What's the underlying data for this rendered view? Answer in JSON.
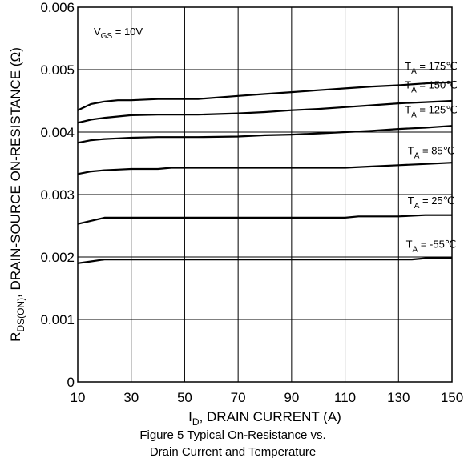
{
  "chart_data": {
    "type": "line",
    "x_axis": {
      "title_main": "I",
      "title_sub": "D",
      "title_rest": ", DRAIN CURRENT (A)",
      "range": [
        10,
        150
      ],
      "ticks": [
        10,
        30,
        50,
        70,
        90,
        110,
        130,
        150
      ],
      "tick_labels": [
        "10",
        "30",
        "50",
        "70",
        "90",
        "110",
        "130",
        "150"
      ]
    },
    "y_axis": {
      "title_main": "R",
      "title_sub": "DS(ON)",
      "title_rest": ", DRAIN-SOURCE ON-RESISTANCE (Ω)",
      "range": [
        0,
        0.006
      ],
      "ticks": [
        0,
        0.001,
        0.002,
        0.003,
        0.004,
        0.005,
        0.006
      ],
      "tick_labels": [
        "0",
        "0.001",
        "0.002",
        "0.003",
        "0.004",
        "0.005",
        "0.006"
      ]
    },
    "grid": true,
    "annotation": {
      "main": "V",
      "sub": "GS",
      "rest": " = 10V"
    },
    "series": [
      {
        "name": "T_A = 175℃",
        "label_main": "T",
        "label_sub": "A",
        "label_rest": " = 175℃",
        "x": [
          10,
          15,
          20,
          25,
          30,
          40,
          55,
          70,
          80,
          90,
          100,
          110,
          120,
          130,
          140,
          150
        ],
        "y": [
          0.00435,
          0.00445,
          0.00449,
          0.00451,
          0.00451,
          0.00453,
          0.00453,
          0.00458,
          0.00461,
          0.00464,
          0.00467,
          0.0047,
          0.00473,
          0.00475,
          0.00478,
          0.0048
        ]
      },
      {
        "name": "T_A = 150℃",
        "label_main": "T",
        "label_sub": "A",
        "label_rest": " = 150℃",
        "x": [
          10,
          15,
          20,
          25,
          30,
          40,
          55,
          70,
          80,
          90,
          100,
          110,
          120,
          130,
          140,
          150
        ],
        "y": [
          0.00415,
          0.0042,
          0.00423,
          0.00425,
          0.00427,
          0.00428,
          0.00428,
          0.0043,
          0.00432,
          0.00435,
          0.00437,
          0.0044,
          0.00443,
          0.00446,
          0.00448,
          0.0045
        ]
      },
      {
        "name": "T_A = 125℃",
        "label_main": "T",
        "label_sub": "A",
        "label_rest": " = 125℃",
        "x": [
          10,
          15,
          20,
          25,
          30,
          40,
          55,
          70,
          80,
          90,
          100,
          110,
          120,
          130,
          140,
          150
        ],
        "y": [
          0.00383,
          0.00387,
          0.00389,
          0.0039,
          0.00391,
          0.00392,
          0.00392,
          0.00393,
          0.00395,
          0.00396,
          0.00398,
          0.004,
          0.00402,
          0.00405,
          0.00407,
          0.0041
        ]
      },
      {
        "name": "T_A = 85℃",
        "label_main": "T",
        "label_sub": "A",
        "label_rest": " = 85℃",
        "x": [
          10,
          15,
          20,
          25,
          30,
          40,
          45,
          55,
          70,
          80,
          90,
          100,
          110,
          120,
          130,
          140,
          150
        ],
        "y": [
          0.00333,
          0.00337,
          0.00339,
          0.0034,
          0.00341,
          0.00341,
          0.00343,
          0.00343,
          0.00343,
          0.00343,
          0.00343,
          0.00343,
          0.00343,
          0.00345,
          0.00347,
          0.00349,
          0.00351
        ]
      },
      {
        "name": "T_A = 25℃",
        "label_main": "T",
        "label_sub": "A",
        "label_rest": " = 25℃",
        "x": [
          10,
          15,
          20,
          30,
          50,
          70,
          90,
          110,
          115,
          130,
          140,
          150
        ],
        "y": [
          0.00253,
          0.00258,
          0.00263,
          0.00263,
          0.00263,
          0.00263,
          0.00263,
          0.00263,
          0.00265,
          0.00265,
          0.00267,
          0.00267
        ]
      },
      {
        "name": "T_A = -55℃",
        "label_main": "T",
        "label_sub": "A",
        "label_rest": " = -55℃",
        "x": [
          10,
          15,
          20,
          30,
          50,
          70,
          90,
          110,
          130,
          135,
          140,
          150
        ],
        "y": [
          0.0019,
          0.00193,
          0.00196,
          0.00196,
          0.00196,
          0.00196,
          0.00196,
          0.00196,
          0.00196,
          0.00196,
          0.00198,
          0.00198
        ]
      }
    ],
    "caption_lines": [
      "Figure 5 Typical On-Resistance vs.",
      "Drain Current and Temperature"
    ]
  }
}
